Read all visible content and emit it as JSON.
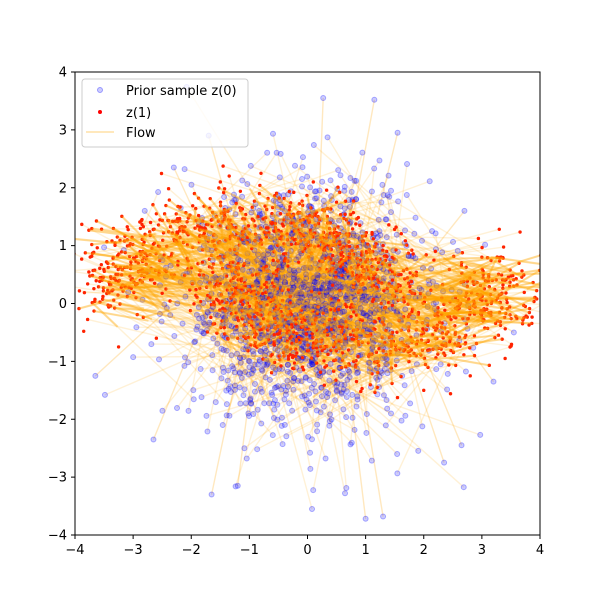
{
  "chart_data": {
    "type": "scatter",
    "title": "",
    "xlabel": "",
    "ylabel": "",
    "xlim": [
      -4,
      4
    ],
    "ylim": [
      -4,
      4
    ],
    "xticks": [
      -4,
      -3,
      -2,
      -1,
      0,
      1,
      2,
      3,
      4
    ],
    "yticks": [
      -4,
      -3,
      -2,
      -1,
      0,
      1,
      2,
      3,
      4
    ],
    "grid": false,
    "legend_position": "top-left",
    "series": [
      {
        "name": "Prior sample z(0)",
        "kind": "scatter",
        "color": "#0000ff",
        "alpha": 0.2,
        "marker": "circle",
        "distribution": "standard normal, 2D"
      },
      {
        "name": "z(1)",
        "kind": "scatter",
        "color": "#ff0000",
        "marker": "circle",
        "distribution": "two interleaved crescent (moons) shaped clusters spanning x about -3.8 to 3.7 and y about -1.5 to 2.3"
      },
      {
        "name": "Flow",
        "kind": "line-segments",
        "color": "#ffa500",
        "alpha": 0.2,
        "description": "straight trajectory lines connecting each prior sample z(0) to its transported point z(1)"
      }
    ],
    "sample_points": {
      "prior_outliers": [
        [
          0.27,
          3.55
        ],
        [
          1.15,
          3.52
        ],
        [
          1.0,
          -3.72
        ],
        [
          1.3,
          -3.68
        ],
        [
          -1.65,
          -3.3
        ],
        [
          -1.2,
          -3.15
        ],
        [
          -2.65,
          -2.35
        ],
        [
          -3.65,
          -1.25
        ],
        [
          -3.5,
          0.97
        ],
        [
          2.35,
          -2.75
        ],
        [
          2.65,
          -2.45
        ],
        [
          3.2,
          -1.35
        ],
        [
          3.55,
          -0.5
        ],
        [
          2.7,
          1.6
        ],
        [
          -2.8,
          1.6
        ],
        [
          -2.3,
          2.35
        ],
        [
          -1.7,
          2.9
        ],
        [
          1.55,
          2.95
        ]
      ],
      "target_edge": [
        [
          -3.85,
          -0.48
        ],
        [
          -3.25,
          -0.75
        ],
        [
          -3.1,
          1.1
        ],
        [
          -2.6,
          1.55
        ],
        [
          -1.5,
          2.1
        ],
        [
          -0.8,
          2.25
        ],
        [
          0.1,
          2.1
        ],
        [
          0.5,
          1.75
        ],
        [
          0.9,
          1.35
        ],
        [
          1.3,
          1.0
        ],
        [
          2.2,
          0.9
        ],
        [
          3.0,
          0.8
        ],
        [
          3.55,
          0.3
        ],
        [
          3.7,
          -0.35
        ],
        [
          3.4,
          -0.95
        ],
        [
          2.8,
          -1.25
        ],
        [
          2.0,
          -1.5
        ],
        [
          1.2,
          -1.45
        ],
        [
          0.3,
          -1.1
        ],
        [
          -0.3,
          -0.6
        ],
        [
          -0.8,
          -0.2
        ],
        [
          -1.6,
          -0.35
        ],
        [
          -2.6,
          -0.6
        ]
      ]
    }
  }
}
